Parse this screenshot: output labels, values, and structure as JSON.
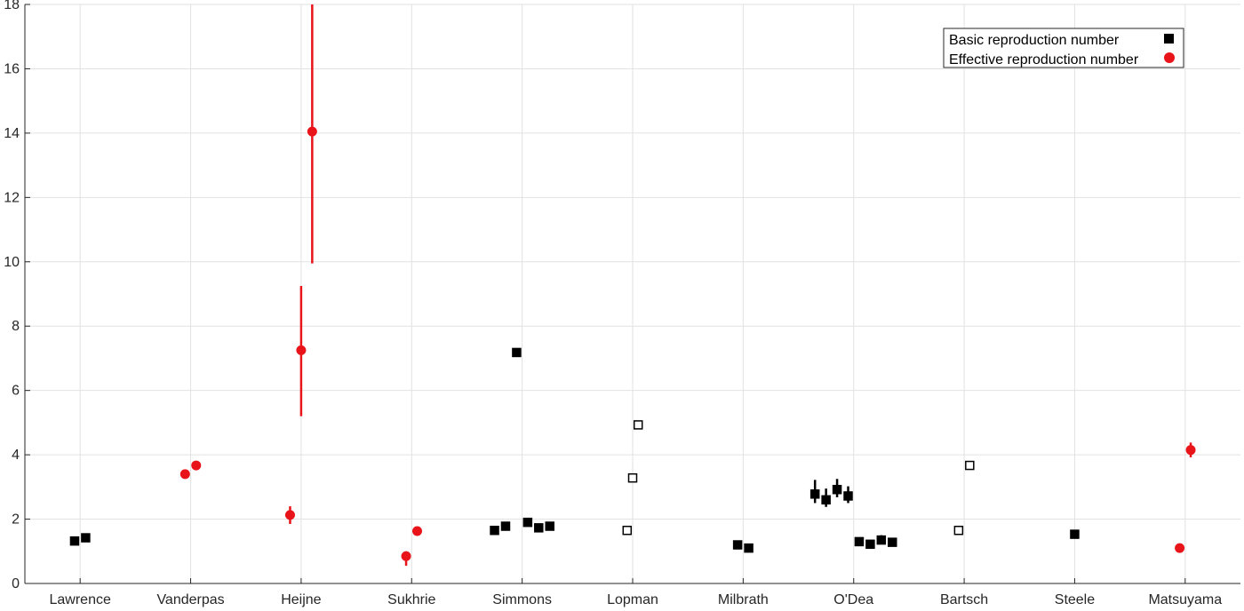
{
  "chart_data": {
    "type": "scatter",
    "title": "",
    "xlabel": "",
    "ylabel": "",
    "categories": [
      "Lawrence",
      "Vanderpas",
      "Heijne",
      "Sukhrie",
      "Simmons",
      "Lopman",
      "Milbrath",
      "O'Dea",
      "Bartsch",
      "Steele",
      "Matsuyama"
    ],
    "ylim": [
      0,
      18
    ],
    "yticks": [
      0,
      2,
      4,
      6,
      8,
      10,
      12,
      14,
      16,
      18
    ],
    "grid": true,
    "legend_position": "top-right",
    "series": [
      {
        "name": "Basic reproduction number",
        "marker": "square",
        "color": "#000000",
        "points": [
          {
            "category": "Lawrence",
            "offset": -0.05,
            "y": 1.32,
            "filled": true
          },
          {
            "category": "Lawrence",
            "offset": 0.05,
            "y": 1.42,
            "filled": true
          },
          {
            "category": "Simmons",
            "offset": -0.25,
            "y": 1.65,
            "filled": true
          },
          {
            "category": "Simmons",
            "offset": -0.15,
            "y": 1.78,
            "filled": true
          },
          {
            "category": "Simmons",
            "offset": -0.05,
            "y": 7.18,
            "filled": true
          },
          {
            "category": "Simmons",
            "offset": 0.05,
            "y": 1.9,
            "filled": true
          },
          {
            "category": "Simmons",
            "offset": 0.15,
            "y": 1.73,
            "filled": true
          },
          {
            "category": "Simmons",
            "offset": 0.25,
            "y": 1.78,
            "filled": true
          },
          {
            "category": "Lopman",
            "offset": -0.05,
            "y": 1.65,
            "filled": false
          },
          {
            "category": "Lopman",
            "offset": 0.0,
            "y": 3.28,
            "filled": false
          },
          {
            "category": "Lopman",
            "offset": 0.05,
            "y": 4.93,
            "filled": false
          },
          {
            "category": "Milbrath",
            "offset": -0.05,
            "y": 1.2,
            "filled": true
          },
          {
            "category": "Milbrath",
            "offset": 0.05,
            "y": 1.1,
            "filled": true
          },
          {
            "category": "O'Dea",
            "offset": -0.35,
            "y": 2.78,
            "low": 2.5,
            "high": 3.22,
            "filled": true
          },
          {
            "category": "O'Dea",
            "offset": -0.25,
            "y": 2.6,
            "low": 2.38,
            "high": 2.95,
            "filled": true
          },
          {
            "category": "O'Dea",
            "offset": -0.15,
            "y": 2.92,
            "low": 2.68,
            "high": 3.25,
            "filled": true
          },
          {
            "category": "O'Dea",
            "offset": -0.05,
            "y": 2.72,
            "low": 2.5,
            "high": 3.02,
            "filled": true
          },
          {
            "category": "O'Dea",
            "offset": 0.05,
            "y": 1.3,
            "low": 1.2,
            "high": 1.42,
            "filled": true
          },
          {
            "category": "O'Dea",
            "offset": 0.15,
            "y": 1.22,
            "filled": true
          },
          {
            "category": "O'Dea",
            "offset": 0.25,
            "y": 1.35,
            "low": 1.25,
            "high": 1.5,
            "filled": true
          },
          {
            "category": "O'Dea",
            "offset": 0.35,
            "y": 1.28,
            "low": 1.18,
            "high": 1.38,
            "filled": true
          },
          {
            "category": "Bartsch",
            "offset": -0.05,
            "y": 1.65,
            "filled": false
          },
          {
            "category": "Bartsch",
            "offset": 0.05,
            "y": 3.67,
            "filled": false
          },
          {
            "category": "Steele",
            "offset": 0.0,
            "y": 1.53,
            "filled": true
          }
        ]
      },
      {
        "name": "Effective reproduction number",
        "marker": "circle",
        "color": "#e8141a",
        "points": [
          {
            "category": "Vanderpas",
            "offset": -0.05,
            "y": 3.4
          },
          {
            "category": "Vanderpas",
            "offset": 0.05,
            "y": 3.67
          },
          {
            "category": "Heijne",
            "offset": -0.1,
            "y": 2.13,
            "low": 1.85,
            "high": 2.4
          },
          {
            "category": "Heijne",
            "offset": 0.0,
            "y": 7.25,
            "low": 5.2,
            "high": 9.25
          },
          {
            "category": "Heijne",
            "offset": 0.1,
            "y": 14.05,
            "low": 9.95,
            "high": 18
          },
          {
            "category": "Sukhrie",
            "offset": -0.05,
            "y": 0.85,
            "low": 0.55,
            "high": 1.0
          },
          {
            "category": "Sukhrie",
            "offset": 0.05,
            "y": 1.63
          },
          {
            "category": "Matsuyama",
            "offset": -0.05,
            "y": 1.1
          },
          {
            "category": "Matsuyama",
            "offset": 0.05,
            "y": 4.15,
            "low": 3.92,
            "high": 4.38
          }
        ]
      }
    ]
  }
}
